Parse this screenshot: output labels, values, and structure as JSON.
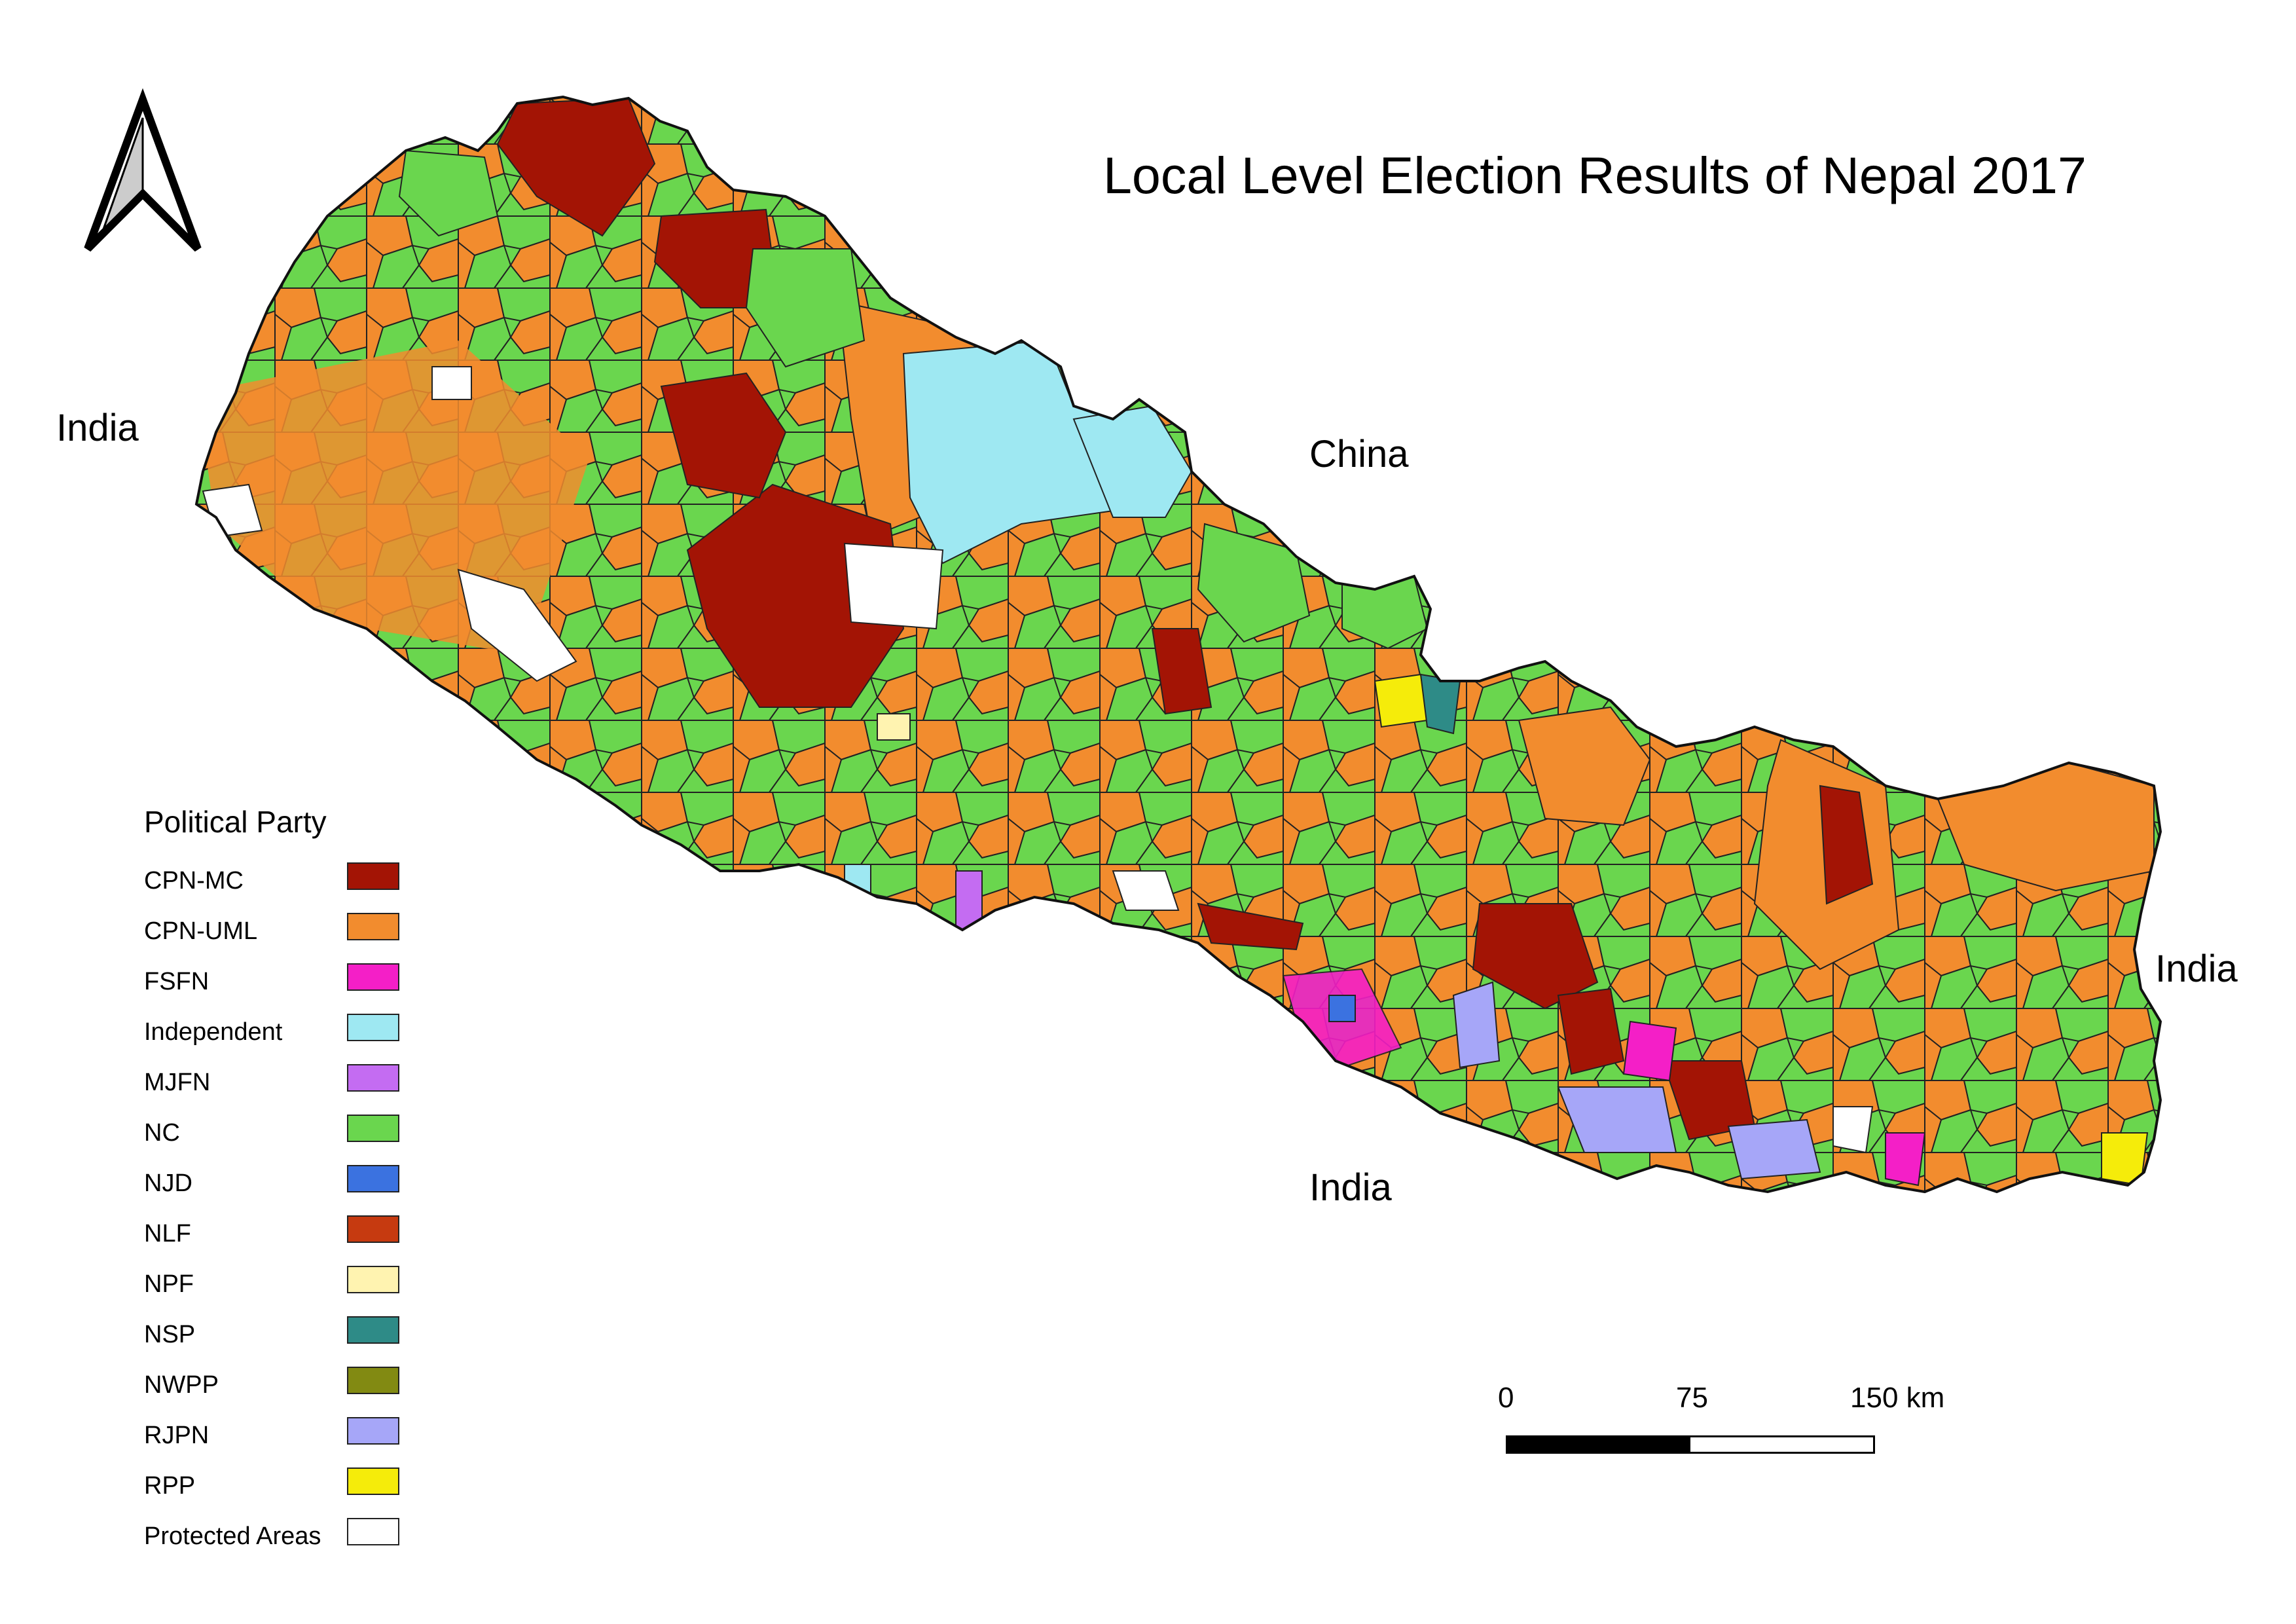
{
  "title": "Local Level Election Results of Nepal 2017",
  "neighbors": {
    "west": "India",
    "north": "China",
    "east": "India",
    "south": "India"
  },
  "legend": {
    "title": "Political Party",
    "items": [
      {
        "label": "CPN-MC",
        "color": "#a31405"
      },
      {
        "label": "CPN-UML",
        "color": "#f28c2e"
      },
      {
        "label": "FSFN",
        "color": "#f41fc7"
      },
      {
        "label": "Independent",
        "color": "#9ee8f2"
      },
      {
        "label": "MJFN",
        "color": "#c46cf2"
      },
      {
        "label": "NC",
        "color": "#6ad64e"
      },
      {
        "label": "NJD",
        "color": "#3b72e0"
      },
      {
        "label": "NLF",
        "color": "#c63a10"
      },
      {
        "label": "NPF",
        "color": "#fff3b0"
      },
      {
        "label": "NSP",
        "color": "#2e8b87"
      },
      {
        "label": "NWPP",
        "color": "#828a12"
      },
      {
        "label": "RJPN",
        "color": "#a6a6f8"
      },
      {
        "label": "RPP",
        "color": "#f5ec0a"
      },
      {
        "label": "Protected Areas",
        "color": "#ffffff"
      }
    ]
  },
  "scale_bar": {
    "ticks": [
      "0",
      "75",
      "150 km"
    ]
  },
  "north_arrow": "north-arrow-icon"
}
